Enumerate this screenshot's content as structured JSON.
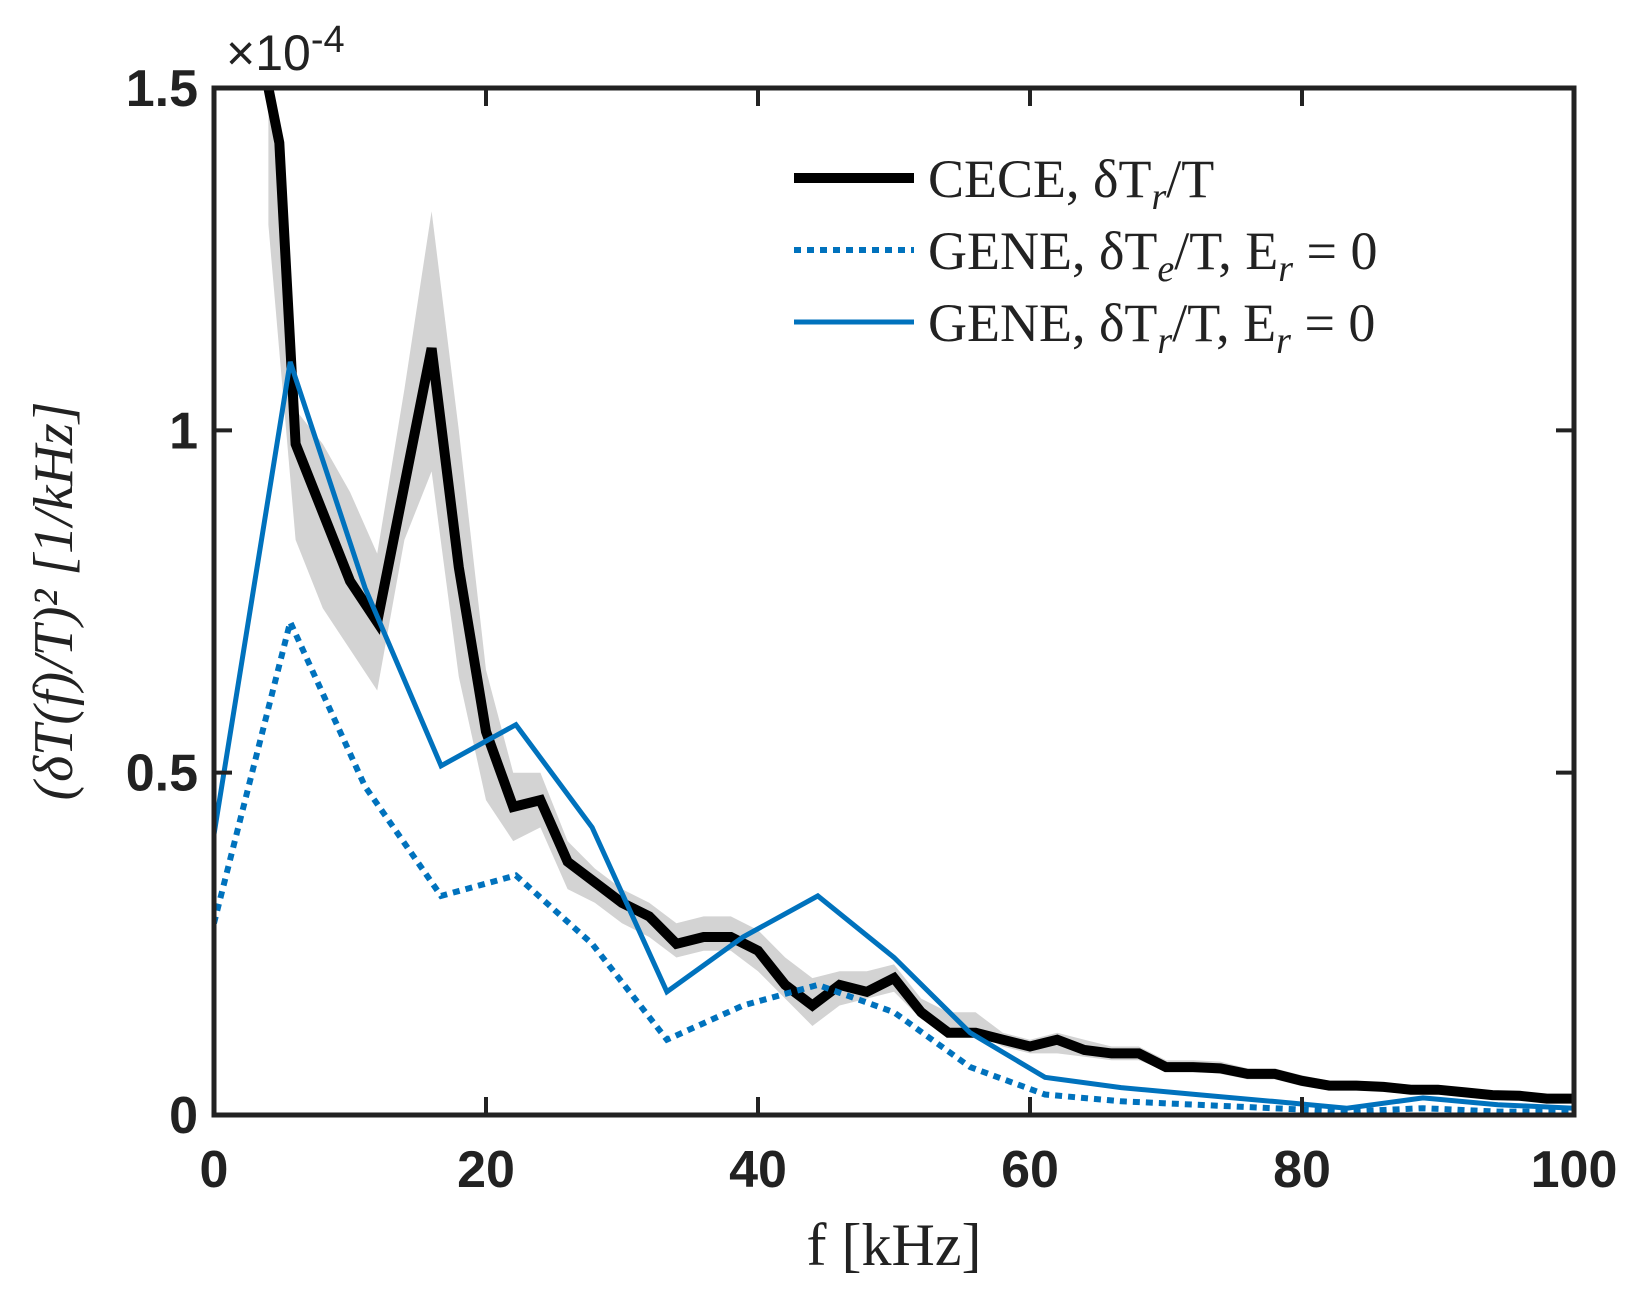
{
  "chart_data": {
    "type": "line",
    "xlabel": "f [kHz]",
    "ylabel": "(δT(f)/T)² [1/kHz]",
    "exponent_label": "×10",
    "exponent_power": "-4",
    "xlim": [
      0,
      100
    ],
    "ylim": [
      0,
      1.5
    ],
    "xticks": [
      0,
      20,
      40,
      60,
      80,
      100
    ],
    "xtick_labels": [
      "0",
      "20",
      "40",
      "60",
      "80",
      "100"
    ],
    "yticks": [
      0,
      0.5,
      1,
      1.5
    ],
    "ytick_labels": [
      "0",
      "0.5",
      "1",
      "1.5"
    ],
    "grid": false,
    "legend_position": "top-right",
    "colors": {
      "cece": "#000000",
      "gene": "#0072BD",
      "band": "#d3d3d3"
    },
    "uncertainty_band": {
      "x": [
        4,
        6,
        8,
        10,
        12,
        14,
        16,
        18,
        20,
        22,
        24,
        26,
        28,
        30,
        32,
        34,
        36,
        38,
        40,
        42,
        44,
        46,
        48,
        50,
        52,
        54,
        56,
        58,
        60,
        62,
        64,
        66,
        68,
        70,
        72,
        74,
        76,
        78,
        80,
        82,
        84,
        86,
        88,
        90,
        92,
        94,
        96,
        98,
        100
      ],
      "upper": [
        1.52,
        1.03,
        0.98,
        0.91,
        0.82,
        1.06,
        1.32,
        1.0,
        0.65,
        0.5,
        0.5,
        0.4,
        0.36,
        0.33,
        0.31,
        0.28,
        0.29,
        0.29,
        0.27,
        0.23,
        0.2,
        0.21,
        0.21,
        0.22,
        0.17,
        0.15,
        0.15,
        0.12,
        0.11,
        0.12,
        0.11,
        0.1,
        0.1,
        0.08,
        0.08,
        0.078,
        0.068,
        0.068,
        0.058,
        0.05,
        0.05,
        0.048,
        0.044,
        0.044,
        0.039,
        0.035,
        0.034,
        0.029,
        0.029
      ],
      "lower": [
        1.3,
        0.84,
        0.74,
        0.68,
        0.62,
        0.84,
        0.94,
        0.64,
        0.46,
        0.4,
        0.42,
        0.33,
        0.31,
        0.28,
        0.26,
        0.23,
        0.24,
        0.24,
        0.21,
        0.17,
        0.13,
        0.16,
        0.17,
        0.18,
        0.14,
        0.12,
        0.12,
        0.1,
        0.09,
        0.09,
        0.085,
        0.08,
        0.08,
        0.064,
        0.064,
        0.06,
        0.052,
        0.052,
        0.042,
        0.036,
        0.036,
        0.034,
        0.03,
        0.03,
        0.027,
        0.023,
        0.022,
        0.019,
        0.019
      ]
    },
    "series": [
      {
        "name": "CECE, δT",
        "subscript": "r",
        "suffix": "/T",
        "style": "solid-thick",
        "x": [
          4,
          4.8,
          6,
          8,
          10,
          12,
          14,
          16,
          18,
          20,
          22,
          24,
          26,
          28,
          30,
          32,
          34,
          36,
          38,
          40,
          42,
          44,
          46,
          48,
          50,
          52,
          54,
          56,
          58,
          60,
          62,
          64,
          66,
          68,
          70,
          72,
          74,
          76,
          78,
          80,
          82,
          84,
          86,
          88,
          90,
          92,
          94,
          96,
          98,
          100
        ],
        "y": [
          1.5,
          1.42,
          0.98,
          0.88,
          0.78,
          0.72,
          0.92,
          1.12,
          0.8,
          0.56,
          0.45,
          0.46,
          0.37,
          0.34,
          0.31,
          0.29,
          0.25,
          0.26,
          0.26,
          0.24,
          0.19,
          0.16,
          0.19,
          0.18,
          0.2,
          0.15,
          0.12,
          0.12,
          0.11,
          0.1,
          0.11,
          0.095,
          0.09,
          0.09,
          0.07,
          0.07,
          0.068,
          0.06,
          0.06,
          0.05,
          0.043,
          0.043,
          0.041,
          0.037,
          0.037,
          0.033,
          0.029,
          0.028,
          0.024,
          0.024
        ]
      },
      {
        "name": "GENE, δT",
        "subscript": "e",
        "suffix": "/T, E",
        "suffix_subscript": "r",
        "suffix_tail": " = 0",
        "style": "dotted",
        "x": [
          0,
          5.6,
          11.1,
          16.7,
          22.2,
          27.8,
          33.3,
          38.9,
          44.4,
          50,
          55.6,
          61.1,
          66.7,
          72.2,
          77.8,
          83.3,
          88.9,
          94.4,
          100
        ],
        "y": [
          0.28,
          0.72,
          0.48,
          0.32,
          0.35,
          0.25,
          0.11,
          0.16,
          0.19,
          0.15,
          0.07,
          0.03,
          0.02,
          0.015,
          0.01,
          0.005,
          0.01,
          0.005,
          0.005
        ]
      },
      {
        "name": "GENE, δT",
        "subscript": "r",
        "suffix": "/T, E",
        "suffix_subscript": "r",
        "suffix_tail": " = 0",
        "style": "solid",
        "x": [
          0,
          5.6,
          11.1,
          16.7,
          22.2,
          27.8,
          33.3,
          38.9,
          44.4,
          50,
          55.6,
          61.1,
          66.7,
          72.2,
          77.8,
          83.3,
          88.9,
          94.4,
          100
        ],
        "y": [
          0.41,
          1.1,
          0.77,
          0.51,
          0.57,
          0.42,
          0.18,
          0.26,
          0.32,
          0.23,
          0.12,
          0.055,
          0.04,
          0.03,
          0.02,
          0.01,
          0.025,
          0.015,
          0.01
        ]
      }
    ]
  }
}
